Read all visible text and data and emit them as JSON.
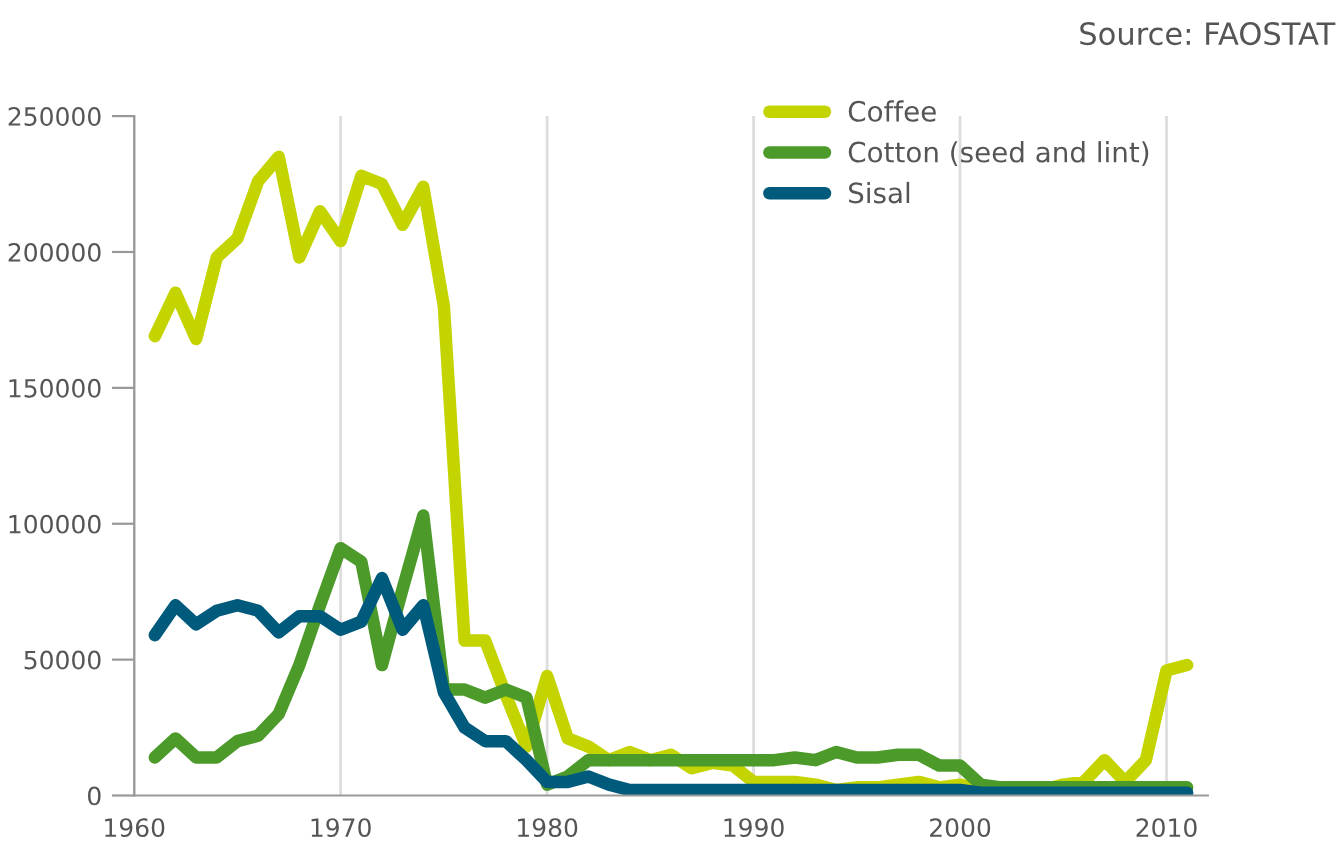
{
  "chart_data": {
    "type": "line",
    "x": [
      1961,
      1962,
      1963,
      1964,
      1965,
      1966,
      1967,
      1968,
      1969,
      1970,
      1971,
      1972,
      1973,
      1974,
      1975,
      1976,
      1977,
      1978,
      1979,
      1980,
      1981,
      1982,
      1983,
      1984,
      1985,
      1986,
      1987,
      1988,
      1989,
      1990,
      1991,
      1992,
      1993,
      1994,
      1995,
      1996,
      1997,
      1998,
      1999,
      2000,
      2001,
      2002,
      2003,
      2004,
      2005,
      2006,
      2007,
      2008,
      2009,
      2010,
      2011
    ],
    "series": [
      {
        "name": "Coffee",
        "color": "#c3d400",
        "values": [
          169000,
          185000,
          168000,
          198000,
          205000,
          226000,
          235000,
          198000,
          215000,
          204000,
          228000,
          225000,
          210000,
          224000,
          180000,
          57000,
          57000,
          37000,
          18000,
          44000,
          21000,
          18000,
          13000,
          16000,
          13000,
          15000,
          10000,
          12000,
          11000,
          5000,
          5000,
          5000,
          4000,
          2000,
          3000,
          3000,
          4000,
          5000,
          3000,
          4000,
          2000,
          1000,
          2000,
          2000,
          4000,
          5000,
          13000,
          5000,
          13000,
          46000,
          48000
        ]
      },
      {
        "name": "Cotton (seed and lint)",
        "color": "#4c9a2a",
        "values": [
          14000,
          21000,
          14000,
          14000,
          20000,
          22000,
          30000,
          48000,
          70000,
          91000,
          86000,
          48000,
          76000,
          103000,
          39000,
          39000,
          36000,
          39000,
          36000,
          4000,
          7000,
          13000,
          13000,
          13000,
          13000,
          13000,
          13000,
          13000,
          13000,
          13000,
          13000,
          14000,
          13000,
          16000,
          14000,
          14000,
          15000,
          15000,
          11000,
          11000,
          4000,
          3000,
          3000,
          3000,
          3000,
          3000,
          3000,
          3000,
          3000,
          3000,
          3000
        ]
      },
      {
        "name": "Sisal",
        "color": "#005a7c",
        "values": [
          59000,
          70000,
          63000,
          68000,
          70000,
          68000,
          60000,
          66000,
          66000,
          61000,
          64000,
          80000,
          61000,
          70000,
          38000,
          25000,
          20000,
          20000,
          13000,
          5000,
          5000,
          7000,
          4000,
          2000,
          2000,
          2000,
          2000,
          2000,
          2000,
          2000,
          2000,
          2000,
          2000,
          2000,
          2000,
          2000,
          2000,
          2000,
          2000,
          2000,
          1000,
          1000,
          1000,
          1000,
          1000,
          1000,
          1000,
          1000,
          1000,
          1000,
          1000
        ]
      }
    ],
    "xlim": [
      1960,
      2012
    ],
    "xticks": [
      1960,
      1970,
      1980,
      1990,
      2000,
      2010
    ],
    "ylim": [
      0,
      250000
    ],
    "yticks": [
      0,
      50000,
      100000,
      150000,
      200000,
      250000
    ],
    "grid": "x",
    "legend": "top right",
    "marker": "none",
    "line_style": "solid",
    "annotations": [
      "Source: FAOSTAT"
    ]
  }
}
